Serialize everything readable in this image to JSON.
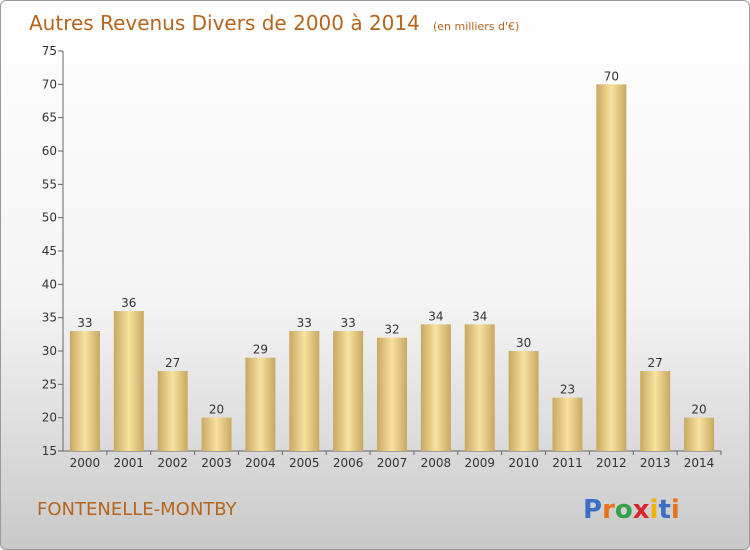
{
  "header": {
    "title": "Autres Revenus Divers de 2000 à 2014",
    "subtitle": "(en milliers d'€)"
  },
  "footer": {
    "commune": "FONTENELLE-MONTBY",
    "brand": "Proxiti",
    "brand_colors": [
      "#3a6fc4",
      "#e8731a",
      "#35a04a",
      "#d9262c",
      "#f0b400",
      "#3a6fc4",
      "#e8731a"
    ]
  },
  "colors": {
    "bar_light": "#f8e2a0",
    "bar_dark": "#c8a860",
    "title": "#b5651d",
    "axis": "#666666"
  },
  "chart_data": {
    "type": "bar",
    "title": "Autres Revenus Divers de 2000 à 2014",
    "subtitle": "(en milliers d'€)",
    "categories": [
      "2000",
      "2001",
      "2002",
      "2003",
      "2004",
      "2005",
      "2006",
      "2007",
      "2008",
      "2009",
      "2010",
      "2011",
      "2012",
      "2013",
      "2014"
    ],
    "values": [
      33,
      36,
      27,
      20,
      29,
      33,
      33,
      32,
      34,
      34,
      30,
      23,
      70,
      27,
      20
    ],
    "ylim": [
      15,
      75
    ],
    "yticks": [
      15,
      20,
      25,
      30,
      35,
      40,
      45,
      50,
      55,
      60,
      65,
      70,
      75
    ],
    "grid": false,
    "legend": "none"
  }
}
